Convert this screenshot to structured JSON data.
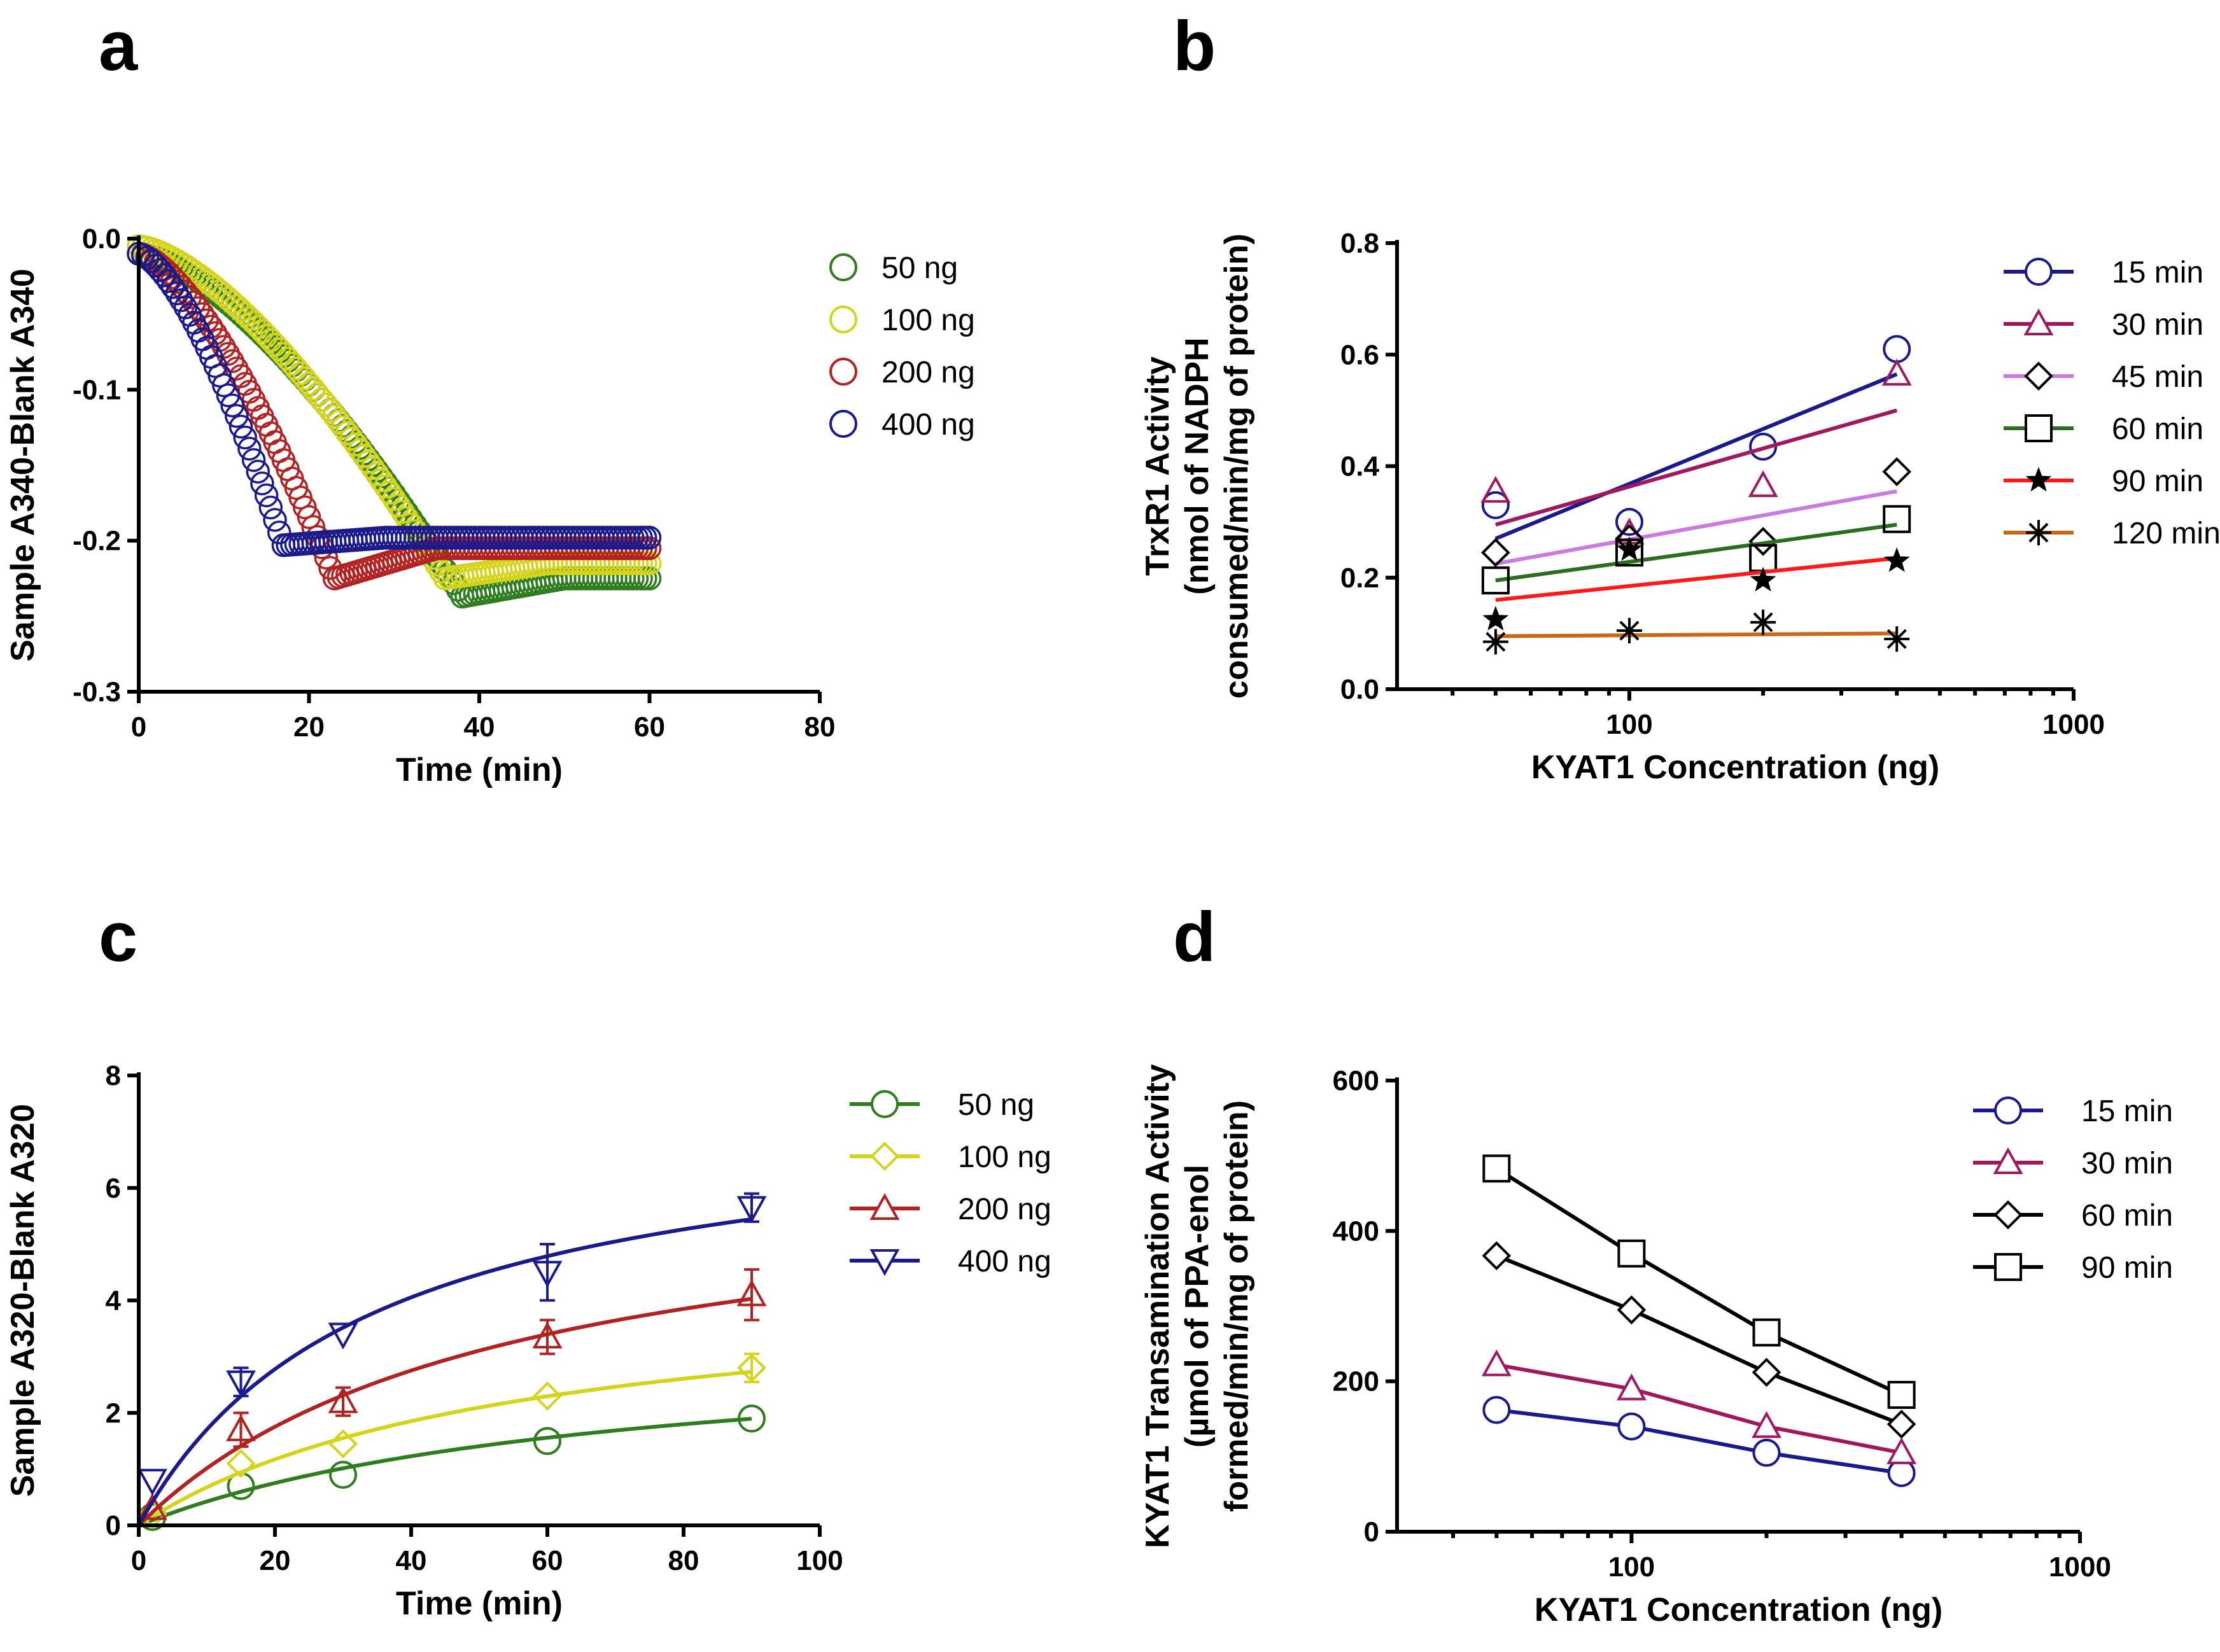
{
  "chart_data": [
    {
      "panel": "a",
      "type": "scatter",
      "xlabel": "Time (min)",
      "ylabel": "Sample A340-Blank A340",
      "xlim": [
        0,
        80
      ],
      "ylim": [
        -0.3,
        0.0
      ],
      "xticks": [
        "0",
        "20",
        "40",
        "60",
        "80"
      ],
      "yticks": [
        "0.0",
        "-0.1",
        "-0.2",
        "-0.3"
      ],
      "legend_position": "right",
      "series": [
        {
          "name": "50 ng",
          "color": "#2e7d1e",
          "marker": "circle",
          "start": -0.01,
          "plateau": -0.225,
          "t_reach": 38,
          "dip": 0.012
        },
        {
          "name": "100 ng",
          "color": "#d4d41c",
          "marker": "circle",
          "start": -0.005,
          "plateau": -0.215,
          "t_reach": 36,
          "dip": 0.01
        },
        {
          "name": "200 ng",
          "color": "#b22222",
          "marker": "circle",
          "start": -0.01,
          "plateau": -0.205,
          "t_reach": 23,
          "dip": 0.02
        },
        {
          "name": "400 ng",
          "color": "#1a1a8c",
          "marker": "circle",
          "start": -0.01,
          "plateau": -0.198,
          "t_reach": 17,
          "dip": 0.005
        }
      ]
    },
    {
      "panel": "b",
      "type": "scatter",
      "xscale": "log",
      "xlabel": "KYAT1 Concentration (ng)",
      "ylabel": [
        "TrxR1 Activity",
        "(nmol of NADPH",
        "consumed/min/mg of protein)"
      ],
      "xlim": [
        30,
        1000
      ],
      "ylim": [
        0.0,
        0.8
      ],
      "xticks": [
        "100",
        "1000"
      ],
      "yticks": [
        "0.0",
        "0.2",
        "0.4",
        "0.6",
        "0.8"
      ],
      "legend_position": "right",
      "x": [
        50,
        100,
        200,
        400
      ],
      "series": [
        {
          "name": "15 min",
          "color": "#1a1a8c",
          "marker": "circle",
          "marker_color": "#1a1a8c",
          "values": [
            0.33,
            0.3,
            0.435,
            0.61
          ],
          "fit": [
            0.27,
            0.565
          ]
        },
        {
          "name": "30 min",
          "color": "#a0185e",
          "marker": "triangle",
          "marker_color": "#a0185e",
          "values": [
            0.355,
            0.28,
            0.365,
            0.565
          ],
          "fit": [
            0.295,
            0.5
          ]
        },
        {
          "name": "45 min",
          "color": "#c97be0",
          "marker": "diamond",
          "marker_color": "#000000",
          "values": [
            0.245,
            0.27,
            0.265,
            0.39
          ],
          "fit": [
            0.225,
            0.355
          ]
        },
        {
          "name": "60 min",
          "color": "#2a6e1e",
          "marker": "square",
          "marker_color": "#000000",
          "values": [
            0.195,
            0.245,
            0.235,
            0.305
          ],
          "fit": [
            0.195,
            0.295
          ]
        },
        {
          "name": "90 min",
          "color": "#ff1a1a",
          "marker": "star",
          "marker_color": "#000000",
          "values": [
            0.125,
            0.25,
            0.195,
            0.23
          ],
          "fit": [
            0.16,
            0.235
          ]
        },
        {
          "name": "120 min",
          "color": "#c8681a",
          "marker": "asterisk",
          "marker_color": "#000000",
          "values": [
            0.085,
            0.105,
            0.12,
            0.09
          ],
          "fit": [
            0.095,
            0.1
          ]
        }
      ]
    },
    {
      "panel": "c",
      "type": "line",
      "xlabel": "Time (min)",
      "ylabel": "Sample A320-Blank A320",
      "xlim": [
        0,
        100
      ],
      "ylim": [
        0,
        8
      ],
      "xticks": [
        "0",
        "20",
        "40",
        "60",
        "80",
        "100"
      ],
      "yticks": [
        "0",
        "2",
        "4",
        "6",
        "8"
      ],
      "legend_position": "right",
      "x": [
        2,
        15,
        30,
        60,
        90
      ],
      "series": [
        {
          "name": "50 ng",
          "color": "#2e7d1e",
          "marker": "circle",
          "values": [
            0.15,
            0.7,
            0.9,
            1.5,
            1.9
          ],
          "errors": [
            0,
            0,
            0,
            0,
            0
          ],
          "vmax": 3.35,
          "k": 69
        },
        {
          "name": "100 ng",
          "color": "#d4d41c",
          "marker": "diamond",
          "values": [
            0.2,
            1.1,
            1.45,
            2.3,
            2.8
          ],
          "errors": [
            0,
            0,
            0,
            0,
            0.25
          ],
          "vmax": 4.4,
          "k": 55
        },
        {
          "name": "200 ng",
          "color": "#b22222",
          "marker": "triangle",
          "values": [
            0.3,
            1.7,
            2.2,
            3.35,
            4.1
          ],
          "errors": [
            0,
            0.3,
            0.25,
            0.3,
            0.45
          ],
          "vmax": 6.4,
          "k": 53
        },
        {
          "name": "400 ng",
          "color": "#1a1a8c",
          "marker": "triangle-down",
          "values": [
            0.8,
            2.55,
            3.4,
            4.5,
            5.65
          ],
          "errors": [
            0,
            0.25,
            0,
            0.5,
            0.25
          ],
          "vmax": 7.5,
          "k": 34
        }
      ]
    },
    {
      "panel": "d",
      "type": "line",
      "xscale": "log",
      "xlabel": "KYAT1 Concentration (ng)",
      "ylabel": [
        "KYAT1 Transamination Activity",
        "(µmol of PPA-enol",
        "formed/min/mg of protein)"
      ],
      "xlim": [
        30,
        1000
      ],
      "ylim": [
        0,
        600
      ],
      "xticks": [
        "100",
        "1000"
      ],
      "yticks": [
        "0",
        "200",
        "400",
        "600"
      ],
      "legend_position": "right",
      "x": [
        50,
        100,
        200,
        400
      ],
      "series": [
        {
          "name": "15 min",
          "color": "#1a1a8c",
          "marker": "circle",
          "marker_color": "#1a1a8c",
          "values": [
            162,
            140,
            105,
            78
          ]
        },
        {
          "name": "30 min",
          "color": "#a0185e",
          "marker": "triangle",
          "marker_color": "#a0185e",
          "values": [
            222,
            190,
            140,
            105
          ]
        },
        {
          "name": "60 min",
          "color": "#000000",
          "marker": "diamond",
          "marker_color": "#000000",
          "values": [
            367,
            295,
            212,
            143
          ]
        },
        {
          "name": "90 min",
          "color": "#000000",
          "marker": "square",
          "marker_color": "#000000",
          "values": [
            483,
            370,
            265,
            182
          ]
        }
      ]
    }
  ]
}
